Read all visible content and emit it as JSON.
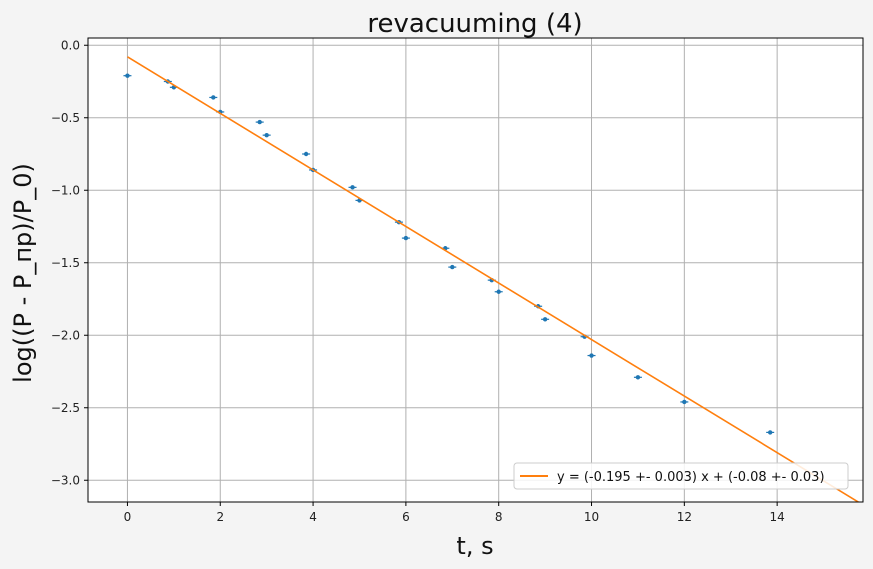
{
  "chart_data": {
    "type": "scatter",
    "title": "revacuuming (4)",
    "xlabel": "t, s",
    "ylabel": "log((P - P_пр)/P_0)",
    "xlim": [
      -0.85,
      15.85
    ],
    "ylim": [
      -3.15,
      0.05
    ],
    "xticks": [
      0,
      2,
      4,
      6,
      8,
      10,
      12,
      14
    ],
    "yticks": [
      0.0,
      -0.5,
      -1.0,
      -1.5,
      -2.0,
      -2.5,
      -3.0
    ],
    "xtick_labels": [
      "0",
      "2",
      "4",
      "6",
      "8",
      "10",
      "12",
      "14"
    ],
    "ytick_labels": [
      "0.0",
      "−0.5",
      "−1.0",
      "−1.5",
      "−2.0",
      "−2.5",
      "−3.0"
    ],
    "grid": true,
    "legend_position": "lower-right",
    "series": [
      {
        "kind": "scatter",
        "color": "#1f77b4",
        "x": [
          0.0,
          0.87,
          1.0,
          1.85,
          2.0,
          2.85,
          3.0,
          3.85,
          4.0,
          4.85,
          5.0,
          5.85,
          6.0,
          6.85,
          7.0,
          7.85,
          8.0,
          8.85,
          9.0,
          9.85,
          10.0,
          11.0,
          12.0,
          13.85
        ],
        "y": [
          -0.21,
          -0.25,
          -0.29,
          -0.36,
          -0.46,
          -0.53,
          -0.62,
          -0.75,
          -0.86,
          -0.98,
          -1.07,
          -1.22,
          -1.33,
          -1.4,
          -1.53,
          -1.62,
          -1.7,
          -1.8,
          -1.89,
          -2.01,
          -2.14,
          -2.29,
          -2.46,
          -2.67
        ]
      },
      {
        "kind": "line",
        "name": "y = (-0.195 +- 0.003) x + (-0.08 +- 0.03)",
        "color": "#ff7f0e",
        "x": [
          0,
          15.85
        ],
        "y": [
          -0.08,
          -3.17
        ]
      }
    ]
  },
  "colors": {
    "background": "#f4f4f4",
    "plot_area": "#ffffff",
    "grid": "#b0b0b0"
  }
}
